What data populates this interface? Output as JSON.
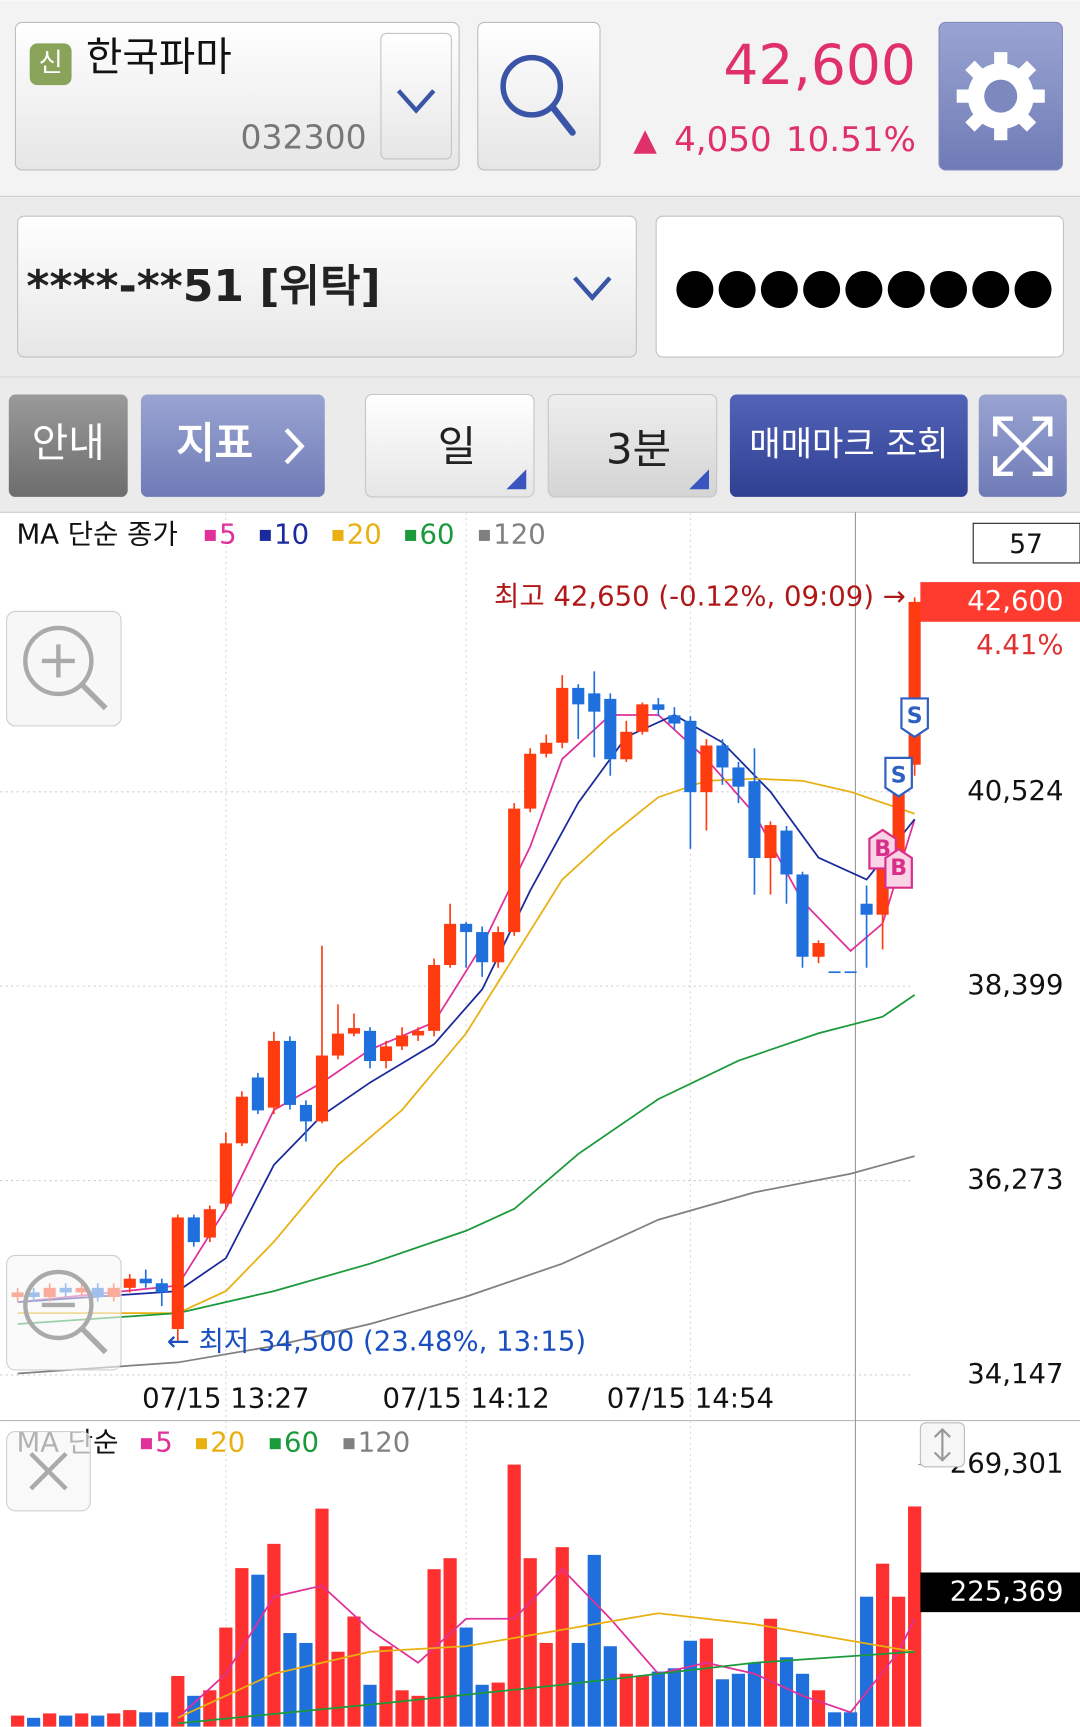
{
  "header": {
    "badge": "신",
    "name": "한국파마",
    "code": "032300",
    "price": "42,600",
    "arrow": "▲",
    "change": "4,050",
    "change_rate": "10.51%"
  },
  "account": {
    "number": "****-**51 [위탁]",
    "password": "●●●●●●●●●"
  },
  "toolbar": {
    "guide": "안내",
    "indicator": "지표",
    "period": "일",
    "interval": "3분",
    "trade_marks": "매매마크 조회"
  },
  "chart_data": [
    {
      "type": "candlestick",
      "legend_title": "MA 단순 종가",
      "categories": [
        null,
        null,
        null,
        null,
        null,
        null,
        null,
        null,
        null,
        null,
        null,
        null,
        null,
        "07/15 13:27",
        null,
        null,
        null,
        null,
        null,
        null,
        null,
        null,
        null,
        null,
        null,
        null,
        null,
        null,
        "07/15 14:12",
        null,
        null,
        null,
        null,
        null,
        null,
        null,
        null,
        null,
        null,
        null,
        null,
        null,
        "07/15 14:54",
        null,
        null,
        null,
        null,
        null,
        null,
        null,
        null,
        null,
        null,
        null,
        null,
        null,
        null
      ],
      "candles": {
        "open": [
          35000,
          35050,
          35000,
          35100,
          35050,
          35100,
          35000,
          35100,
          35200,
          35150,
          34650,
          35870,
          35650,
          36020,
          36680,
          37400,
          37070,
          37800,
          37100,
          36920,
          37640,
          37880,
          37910,
          37580,
          37740,
          37860,
          37910,
          38630,
          39080,
          38990,
          38660,
          38990,
          40340,
          40940,
          41060,
          41660,
          41600,
          41540,
          40880,
          41180,
          41480,
          41360,
          41300,
          40520,
          41030,
          40790,
          40640,
          39800,
          40100,
          39620,
          38720,
          38560,
          38560,
          39300,
          39180,
          39860,
          40820
        ],
        "close": [
          35050,
          35000,
          35100,
          35050,
          35100,
          35000,
          35100,
          35200,
          35150,
          35050,
          35870,
          35600,
          35960,
          36680,
          37190,
          37040,
          37800,
          37100,
          36920,
          37640,
          37880,
          37940,
          37580,
          37740,
          37860,
          37910,
          38630,
          39080,
          38990,
          38660,
          38990,
          40340,
          40940,
          41060,
          41660,
          41480,
          41400,
          40880,
          41180,
          41480,
          41420,
          41270,
          40520,
          41030,
          40790,
          40580,
          39800,
          40160,
          39620,
          38720,
          38870,
          38560,
          38560,
          39180,
          39860,
          40520,
          42600
        ],
        "high": [
          35100,
          35100,
          35150,
          35150,
          35150,
          35150,
          35150,
          35250,
          35300,
          35200,
          35900,
          35900,
          36000,
          36800,
          37250,
          37450,
          37900,
          37850,
          37150,
          38840,
          38200,
          38100,
          37950,
          37800,
          37950,
          37950,
          38700,
          39300,
          39100,
          39050,
          39050,
          40400,
          41000,
          41150,
          41800,
          41700,
          41840,
          41600,
          41300,
          41500,
          41550,
          41450,
          41350,
          41100,
          41100,
          40850,
          41000,
          40200,
          40150,
          39650,
          38900,
          38560,
          38560,
          39500,
          40000,
          40600,
          42650
        ],
        "low": [
          34950,
          34950,
          34950,
          35000,
          35000,
          34950,
          34950,
          35050,
          35100,
          34900,
          34500,
          35550,
          35600,
          35950,
          36650,
          37000,
          37000,
          37050,
          36700,
          36900,
          37600,
          37850,
          37500,
          37500,
          37700,
          37800,
          37850,
          38600,
          38600,
          38500,
          38600,
          38950,
          40300,
          40900,
          41000,
          41100,
          40900,
          40700,
          40850,
          41150,
          41350,
          41200,
          39900,
          40100,
          40600,
          40400,
          39400,
          39400,
          39300,
          38600,
          38650,
          38560,
          38560,
          38600,
          38800,
          39800,
          40700
        ]
      },
      "up_color": "#ff3b10",
      "down_color": "#1f6fdc",
      "series": [
        {
          "name": "5",
          "color": "#e0309a",
          "x": [
            0,
            10,
            13,
            16,
            19,
            22,
            26,
            29,
            32,
            34,
            37,
            40,
            43,
            46,
            49,
            52,
            54,
            56
          ],
          "values": [
            34944,
            35124,
            35964,
            37044,
            37344,
            37704,
            38004,
            38844,
            39924,
            40884,
            41364,
            41364,
            40884,
            40284,
            39324,
            38784,
            39084,
            40224
          ]
        },
        {
          "name": "10",
          "color": "#1a2a9c",
          "x": [
            0,
            10,
            13,
            16,
            19,
            22,
            26,
            29,
            32,
            35,
            38,
            41,
            44,
            47,
            50,
            53,
            56
          ],
          "values": [
            34944,
            35064,
            35424,
            36444,
            36984,
            37344,
            37764,
            38364,
            39444,
            40404,
            41124,
            41364,
            41064,
            40524,
            39804,
            39564,
            40224
          ]
        },
        {
          "name": "20",
          "color": "#e8b010",
          "x": [
            0,
            10,
            13,
            16,
            20,
            24,
            28,
            31,
            34,
            37,
            40,
            43,
            46,
            49,
            52,
            56
          ],
          "values": [
            34824,
            34824,
            35064,
            35604,
            36444,
            37044,
            37884,
            38724,
            39564,
            40044,
            40464,
            40644,
            40668,
            40644,
            40524,
            40284
          ]
        },
        {
          "name": "60",
          "color": "#1a9a3a",
          "x": [
            0,
            10,
            16,
            22,
            28,
            31,
            35,
            40,
            45,
            50,
            54,
            56
          ],
          "values": [
            34704,
            34824,
            35064,
            35364,
            35724,
            35964,
            36564,
            37164,
            37584,
            37884,
            38064,
            38304
          ]
        },
        {
          "name": "120",
          "color": "#808080",
          "x": [
            0,
            10,
            16,
            22,
            28,
            34,
            40,
            46,
            52,
            56
          ],
          "values": [
            34164,
            34284,
            34464,
            34704,
            35004,
            35364,
            35844,
            36144,
            36348,
            36540
          ]
        }
      ],
      "ylim": [
        34100,
        43580
      ],
      "yticks": [
        {
          "value": 34147,
          "label": "34,147"
        },
        {
          "value": 36273,
          "label": "36,273"
        },
        {
          "value": 38399,
          "label": "38,399"
        },
        {
          "value": 40524,
          "label": "40,524"
        }
      ],
      "grid": true,
      "current": {
        "value": 42600,
        "label": "42,600"
      },
      "current_change": "4.41%",
      "countdown": "57",
      "annotations": [
        {
          "text": "최고 42,650 (-0.12%, 09:09) →",
          "index": 56,
          "value": 42650,
          "color": "#b01818"
        },
        {
          "text": "← 최저 34,500 (23.48%, 13:15)",
          "index": 10,
          "value": 34500,
          "color": "#1a4fc0"
        }
      ],
      "trade_marks": [
        {
          "label": "S",
          "index": 56,
          "value": 41340,
          "color": "#2f5fc0"
        },
        {
          "label": "S",
          "index": 55,
          "value": 40690,
          "color": "#2f5fc0"
        },
        {
          "label": "B",
          "index": 54,
          "value": 39890,
          "color": "#d8308a"
        },
        {
          "label": "B",
          "index": 55,
          "value": 39680,
          "color": "#d8308a"
        }
      ]
    },
    {
      "type": "bar",
      "legend_title": "MA 단순",
      "values": [
        182960,
        182200,
        183720,
        182960,
        183720,
        182960,
        183720,
        184850,
        184090,
        184090,
        196590,
        189770,
        191670,
        213250,
        233700,
        231430,
        242040,
        211360,
        207950,
        254150,
        204920,
        217040,
        193560,
        206820,
        191670,
        189770,
        233320,
        237110,
        213250,
        193560,
        194320,
        269300,
        237110,
        207950,
        240900,
        207950,
        238250,
        206820,
        197350,
        196590,
        198110,
        199240,
        208710,
        209470,
        195450,
        197350,
        201140,
        216280,
        203030,
        197350,
        191670,
        184090,
        184090,
        223860,
        235220,
        223860,
        254910
      ],
      "series": [
        {
          "name": "5",
          "color": "#e0309a",
          "x": [
            10,
            13,
            16,
            19,
            22,
            25,
            28,
            31,
            34,
            37,
            40,
            43,
            46,
            49,
            52,
            55,
            56
          ],
          "values": [
            182200,
            197350,
            223860,
            227640,
            212490,
            201140,
            216280,
            216280,
            233320,
            216280,
            197350,
            201140,
            197350,
            189770,
            184090,
            204920,
            216280
          ]
        },
        {
          "name": "20",
          "color": "#e8b010",
          "x": [
            10,
            16,
            22,
            28,
            34,
            40,
            46,
            52,
            56
          ],
          "values": [
            182200,
            197350,
            204920,
            206820,
            212490,
            218180,
            214390,
            208710,
            204920
          ]
        },
        {
          "name": "60",
          "color": "#1a9a3a",
          "x": [
            10,
            22,
            34,
            46,
            56
          ],
          "values": [
            180310,
            186750,
            193560,
            201140,
            204920
          ]
        },
        {
          "name": "120",
          "color": "#808080"
        }
      ],
      "ylim": [
        179170,
        283310
      ],
      "yticks": [
        {
          "value": 269301,
          "label": "269,301"
        }
      ],
      "marker": {
        "value": 225369,
        "label": "225,369"
      }
    }
  ]
}
